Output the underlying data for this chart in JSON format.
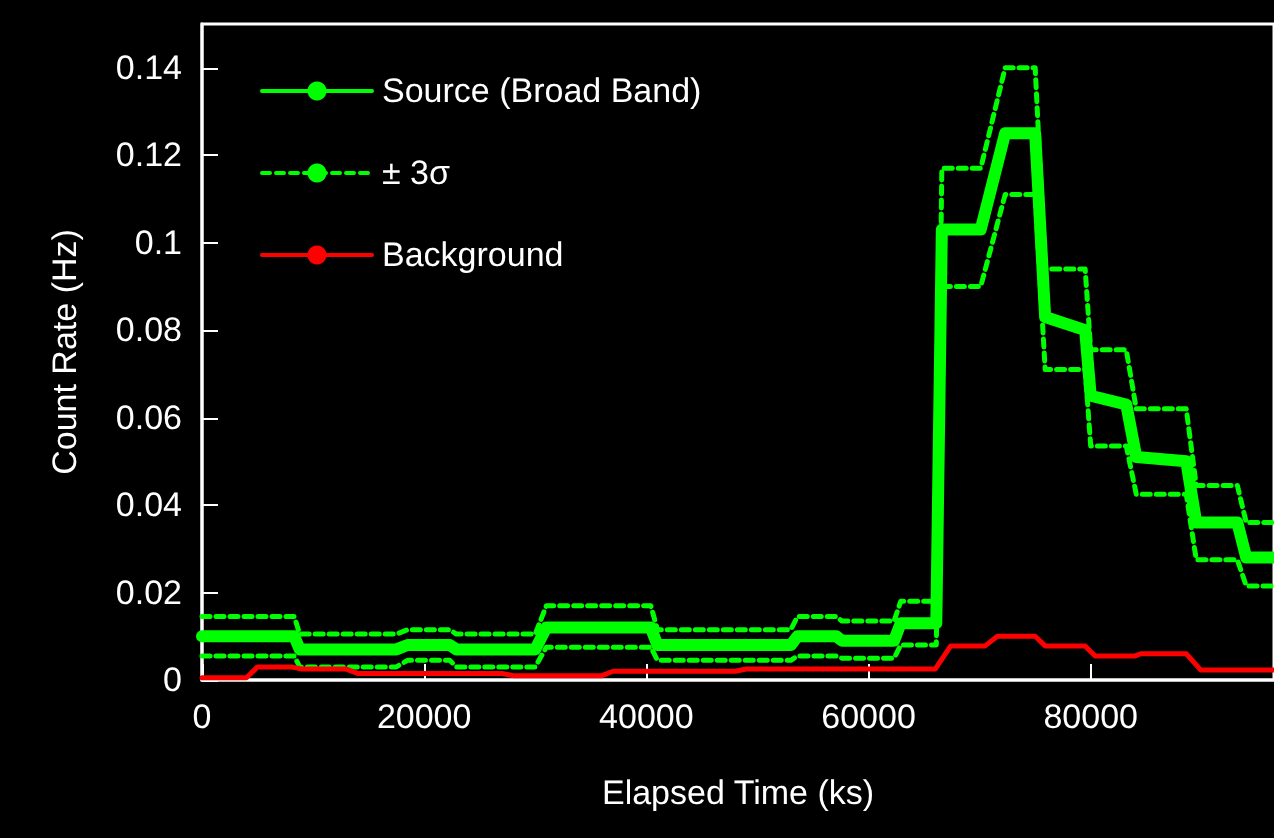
{
  "chart_data": {
    "type": "line",
    "xlabel": "Elapsed Time (ks)",
    "ylabel": "Count Rate (Hz)",
    "xlim": [
      0,
      96500
    ],
    "xticks": [
      0,
      20000,
      40000,
      60000,
      80000
    ],
    "ylim": [
      0,
      0.15
    ],
    "yticks": [
      0,
      0.02,
      0.04,
      0.06,
      0.08,
      0.1,
      0.12,
      0.14
    ],
    "grid": false,
    "legend": "top left",
    "marker": "none",
    "series": [
      {
        "name": "Source (Broad Band)",
        "color": "#00ff00",
        "line_style": "solid",
        "x": [
          0,
          8300,
          8800,
          17500,
          18500,
          22300,
          22900,
          30000,
          31000,
          40400,
          41000,
          53000,
          53600,
          57100,
          57600,
          62300,
          62900,
          66100,
          66600,
          70100,
          72300,
          75000,
          75900,
          79500,
          80000,
          83200,
          84100,
          88600,
          89500,
          93200,
          94000,
          96500
        ],
        "values": [
          0.01,
          0.01,
          0.007,
          0.007,
          0.008,
          0.008,
          0.007,
          0.007,
          0.012,
          0.012,
          0.008,
          0.008,
          0.01,
          0.01,
          0.009,
          0.009,
          0.013,
          0.013,
          0.103,
          0.103,
          0.125,
          0.125,
          0.083,
          0.08,
          0.065,
          0.063,
          0.051,
          0.05,
          0.036,
          0.036,
          0.028,
          0.028
        ]
      },
      {
        "name": "± 3σ",
        "color": "#00ff00",
        "line_style": "dashed",
        "x": [
          0,
          8300,
          8800,
          17500,
          18500,
          22300,
          22900,
          30000,
          31000,
          40400,
          41000,
          53000,
          53600,
          57100,
          57600,
          62300,
          62900,
          66100,
          66600,
          70100,
          72300,
          75000,
          75900,
          79500,
          80000,
          83200,
          84100,
          88600,
          89500,
          93200,
          94000,
          96500
        ],
        "values": [
          0.0145,
          0.0145,
          0.0105,
          0.0105,
          0.0115,
          0.0115,
          0.0105,
          0.0105,
          0.017,
          0.017,
          0.0115,
          0.0115,
          0.0145,
          0.0145,
          0.0135,
          0.0135,
          0.018,
          0.018,
          0.117,
          0.117,
          0.14,
          0.14,
          0.094,
          0.094,
          0.0755,
          0.0755,
          0.062,
          0.062,
          0.0445,
          0.0445,
          0.036,
          0.036
        ]
      },
      {
        "color": "#00ff00",
        "line_style": "dashed",
        "x": [
          0,
          8300,
          8800,
          17500,
          18500,
          22300,
          22900,
          30000,
          31000,
          40400,
          41000,
          53000,
          53600,
          57100,
          57600,
          62300,
          62900,
          66100,
          66600,
          70100,
          72300,
          75000,
          75900,
          79500,
          80000,
          83200,
          84100,
          88600,
          89500,
          93200,
          94000,
          96500
        ],
        "values": [
          0.0055,
          0.0055,
          0.003,
          0.003,
          0.0045,
          0.0045,
          0.003,
          0.003,
          0.0075,
          0.0075,
          0.0045,
          0.0045,
          0.0055,
          0.0055,
          0.005,
          0.005,
          0.008,
          0.008,
          0.09,
          0.09,
          0.111,
          0.111,
          0.071,
          0.071,
          0.0535,
          0.0535,
          0.0425,
          0.0425,
          0.0275,
          0.0275,
          0.0215,
          0.0215
        ]
      },
      {
        "name": "Background",
        "color": "#ff0000",
        "line_style": "solid",
        "x": [
          0,
          4000,
          5000,
          8000,
          9000,
          13000,
          14000,
          27000,
          28000,
          36000,
          37000,
          48000,
          49000,
          66000,
          67400,
          70500,
          71600,
          75000,
          75900,
          79500,
          80400,
          84000,
          84500,
          88600,
          89900,
          96500
        ],
        "values": [
          0.0005,
          0.0005,
          0.003,
          0.003,
          0.0025,
          0.0025,
          0.0015,
          0.0015,
          0.001,
          0.001,
          0.002,
          0.002,
          0.0025,
          0.0025,
          0.0078,
          0.0078,
          0.01,
          0.01,
          0.0078,
          0.0078,
          0.0055,
          0.0055,
          0.006,
          0.006,
          0.0023,
          0.0023
        ]
      }
    ]
  }
}
